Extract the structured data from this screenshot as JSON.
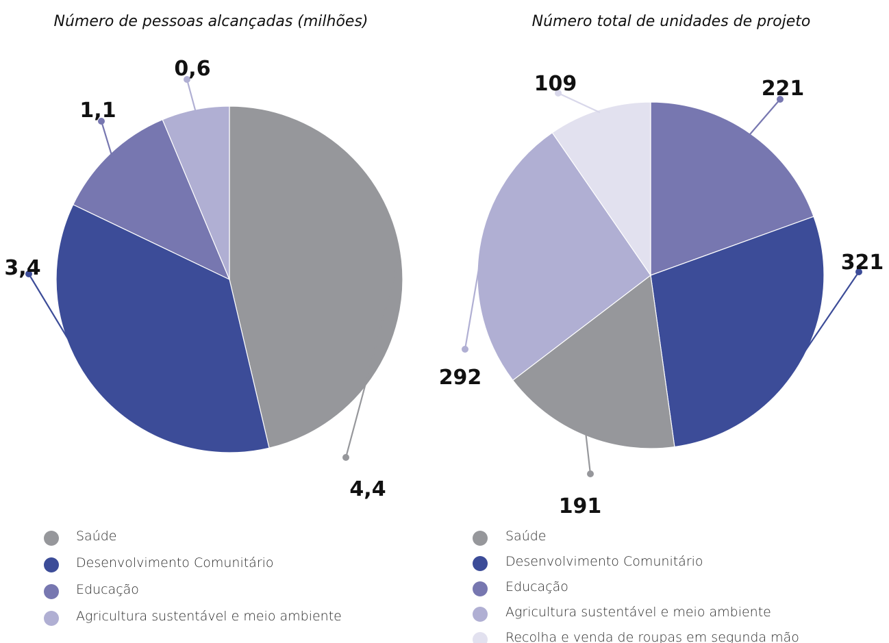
{
  "chart_data": [
    {
      "type": "pie",
      "title": "Número de pessoas alcançadas (milhões)",
      "categories": [
        "Saúde",
        "Desenvolvimento Comunitário",
        "Educação",
        "Agricultura sustentável e meio ambiente"
      ],
      "values": [
        4.4,
        3.4,
        1.1,
        0.6
      ],
      "value_labels": [
        "4,4",
        "3,4",
        "1,1",
        "0,6"
      ],
      "colors": [
        "#96979b",
        "#3c4c98",
        "#7777b0",
        "#b0afd3"
      ],
      "legend": [
        {
          "label": "Saúde",
          "color": "#96979b"
        },
        {
          "label": "Desenvolvimento Comunitário",
          "color": "#3c4c98"
        },
        {
          "label": "Educação",
          "color": "#7777b0"
        },
        {
          "label": "Agricultura sustentável e meio ambiente",
          "color": "#b0afd3"
        }
      ]
    },
    {
      "type": "pie",
      "title": "Número total de unidades de projeto",
      "categories": [
        "Educação",
        "Desenvolvimento Comunitário",
        "Saúde",
        "Agricultura sustentável e meio ambiente",
        "Recolha e venda de roupas em segunda mão"
      ],
      "values": [
        221,
        321,
        191,
        292,
        109
      ],
      "value_labels": [
        "221",
        "321",
        "191",
        "292",
        "109"
      ],
      "colors": [
        "#7777b0",
        "#3c4c98",
        "#96979b",
        "#b0afd3",
        "#e2e1ef"
      ],
      "legend": [
        {
          "label": "Saúde",
          "color": "#96979b"
        },
        {
          "label": "Desenvolvimento Comunitário",
          "color": "#3c4c98"
        },
        {
          "label": "Educação",
          "color": "#7777b0"
        },
        {
          "label": "Agricultura sustentável e meio ambiente",
          "color": "#b0afd3"
        },
        {
          "label": "Recolha e venda de roupas em segunda mão",
          "color": "#e2e1ef"
        }
      ]
    }
  ]
}
